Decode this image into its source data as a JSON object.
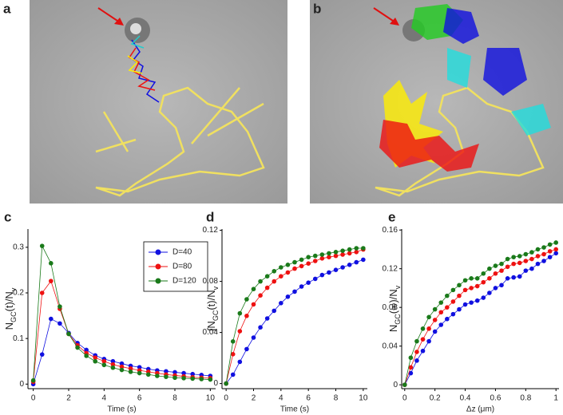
{
  "images": [
    {
      "label": "a"
    },
    {
      "label": "b"
    }
  ],
  "chart_data": [
    {
      "type": "line",
      "label": "c",
      "xlabel": "Time (s)",
      "ylabel": [
        {
          "text": "N"
        },
        {
          "text": "GC",
          "sub": true
        },
        {
          "text": "(t)/N"
        },
        {
          "text": "v",
          "sub": true
        }
      ],
      "x": [
        0,
        0.5,
        1,
        1.5,
        2,
        2.5,
        3,
        3.5,
        4,
        4.5,
        5,
        5.5,
        6,
        6.5,
        7,
        7.5,
        8,
        8.5,
        9,
        9.5,
        10
      ],
      "xlim": [
        -0.3,
        10.3
      ],
      "xticks": [
        0,
        2,
        4,
        6,
        8,
        10
      ],
      "ylim": [
        -0.01,
        0.34
      ],
      "yticks": [
        0,
        0.1,
        0.2,
        0.3
      ],
      "legend": "upper right",
      "series": [
        {
          "name": "D=40",
          "color": "#1010e0",
          "values": [
            0,
            0.065,
            0.143,
            0.133,
            0.112,
            0.09,
            0.075,
            0.063,
            0.055,
            0.05,
            0.045,
            0.04,
            0.037,
            0.033,
            0.03,
            0.028,
            0.026,
            0.024,
            0.022,
            0.02,
            0.018
          ]
        },
        {
          "name": "D=80",
          "color": "#ee1111",
          "values": [
            0.005,
            0.2,
            0.226,
            0.165,
            0.11,
            0.085,
            0.068,
            0.058,
            0.05,
            0.043,
            0.038,
            0.034,
            0.03,
            0.027,
            0.024,
            0.021,
            0.019,
            0.017,
            0.015,
            0.014,
            0.013
          ]
        },
        {
          "name": "D=120",
          "color": "#1a7a1a",
          "values": [
            0.008,
            0.303,
            0.265,
            0.17,
            0.11,
            0.08,
            0.062,
            0.05,
            0.042,
            0.036,
            0.031,
            0.027,
            0.024,
            0.021,
            0.018,
            0.016,
            0.014,
            0.013,
            0.012,
            0.011,
            0.01
          ]
        }
      ]
    },
    {
      "type": "line",
      "label": "d",
      "xlabel": "Time (s)",
      "ylabel": [
        {
          "text": "∫N"
        },
        {
          "text": "GC",
          "sub": true
        },
        {
          "text": "(t)/N"
        },
        {
          "text": "v",
          "sub": true
        }
      ],
      "x": [
        0,
        0.5,
        1,
        1.5,
        2,
        2.5,
        3,
        3.5,
        4,
        4.5,
        5,
        5.5,
        6,
        6.5,
        7,
        7.5,
        8,
        8.5,
        9,
        9.5,
        10
      ],
      "xlim": [
        -0.3,
        10.3
      ],
      "xticks": [
        0,
        2,
        4,
        6,
        8,
        10
      ],
      "ylim": [
        -0.004,
        0.121
      ],
      "yticks": [
        0,
        0.04,
        0.08,
        0.12
      ],
      "series": [
        {
          "color": "#1010e0",
          "values": [
            0,
            0.007,
            0.017,
            0.027,
            0.036,
            0.044,
            0.051,
            0.057,
            0.063,
            0.068,
            0.072,
            0.076,
            0.079,
            0.082,
            0.085,
            0.087,
            0.089,
            0.091,
            0.093,
            0.095,
            0.097
          ]
        },
        {
          "color": "#ee1111",
          "values": [
            0,
            0.023,
            0.041,
            0.053,
            0.062,
            0.069,
            0.075,
            0.08,
            0.084,
            0.087,
            0.09,
            0.092,
            0.094,
            0.096,
            0.098,
            0.099,
            0.1,
            0.101,
            0.102,
            0.103,
            0.105
          ]
        },
        {
          "color": "#1a7a1a",
          "values": [
            0,
            0.033,
            0.055,
            0.066,
            0.074,
            0.08,
            0.084,
            0.088,
            0.091,
            0.093,
            0.095,
            0.097,
            0.099,
            0.1,
            0.101,
            0.102,
            0.103,
            0.104,
            0.105,
            0.106,
            0.106
          ]
        }
      ]
    },
    {
      "type": "line",
      "label": "e",
      "xlabel": "Δz (μm)",
      "ylabel": [
        {
          "text": "N"
        },
        {
          "text": "GC",
          "sub": true
        },
        {
          "text": "(∞)/N"
        },
        {
          "text": "v",
          "sub": true
        }
      ],
      "x": [
        0,
        0.04,
        0.08,
        0.12,
        0.16,
        0.2,
        0.24,
        0.28,
        0.32,
        0.36,
        0.4,
        0.44,
        0.48,
        0.52,
        0.56,
        0.6,
        0.64,
        0.68,
        0.72,
        0.76,
        0.8,
        0.84,
        0.88,
        0.92,
        0.96,
        1
      ],
      "xlim": [
        -0.02,
        1.02
      ],
      "xticks": [
        0,
        0.2,
        0.4,
        0.6,
        0.8,
        1
      ],
      "ylim": [
        -0.004,
        0.161
      ],
      "yticks": [
        0,
        0.04,
        0.08,
        0.12,
        0.16
      ],
      "series": [
        {
          "color": "#1010e0",
          "values": [
            0,
            0.012,
            0.025,
            0.035,
            0.045,
            0.055,
            0.062,
            0.068,
            0.073,
            0.078,
            0.083,
            0.085,
            0.087,
            0.09,
            0.095,
            0.1,
            0.103,
            0.11,
            0.111,
            0.112,
            0.118,
            0.12,
            0.125,
            0.128,
            0.132,
            0.136
          ]
        },
        {
          "color": "#ee1111",
          "values": [
            0,
            0.018,
            0.034,
            0.047,
            0.058,
            0.067,
            0.075,
            0.08,
            0.086,
            0.092,
            0.098,
            0.1,
            0.102,
            0.106,
            0.11,
            0.115,
            0.118,
            0.122,
            0.125,
            0.126,
            0.128,
            0.13,
            0.133,
            0.135,
            0.138,
            0.14
          ]
        },
        {
          "color": "#1a7a1a",
          "values": [
            0,
            0.028,
            0.045,
            0.058,
            0.07,
            0.078,
            0.085,
            0.092,
            0.098,
            0.103,
            0.108,
            0.11,
            0.11,
            0.115,
            0.12,
            0.123,
            0.125,
            0.13,
            0.132,
            0.133,
            0.135,
            0.137,
            0.14,
            0.142,
            0.145,
            0.147
          ]
        }
      ]
    }
  ]
}
